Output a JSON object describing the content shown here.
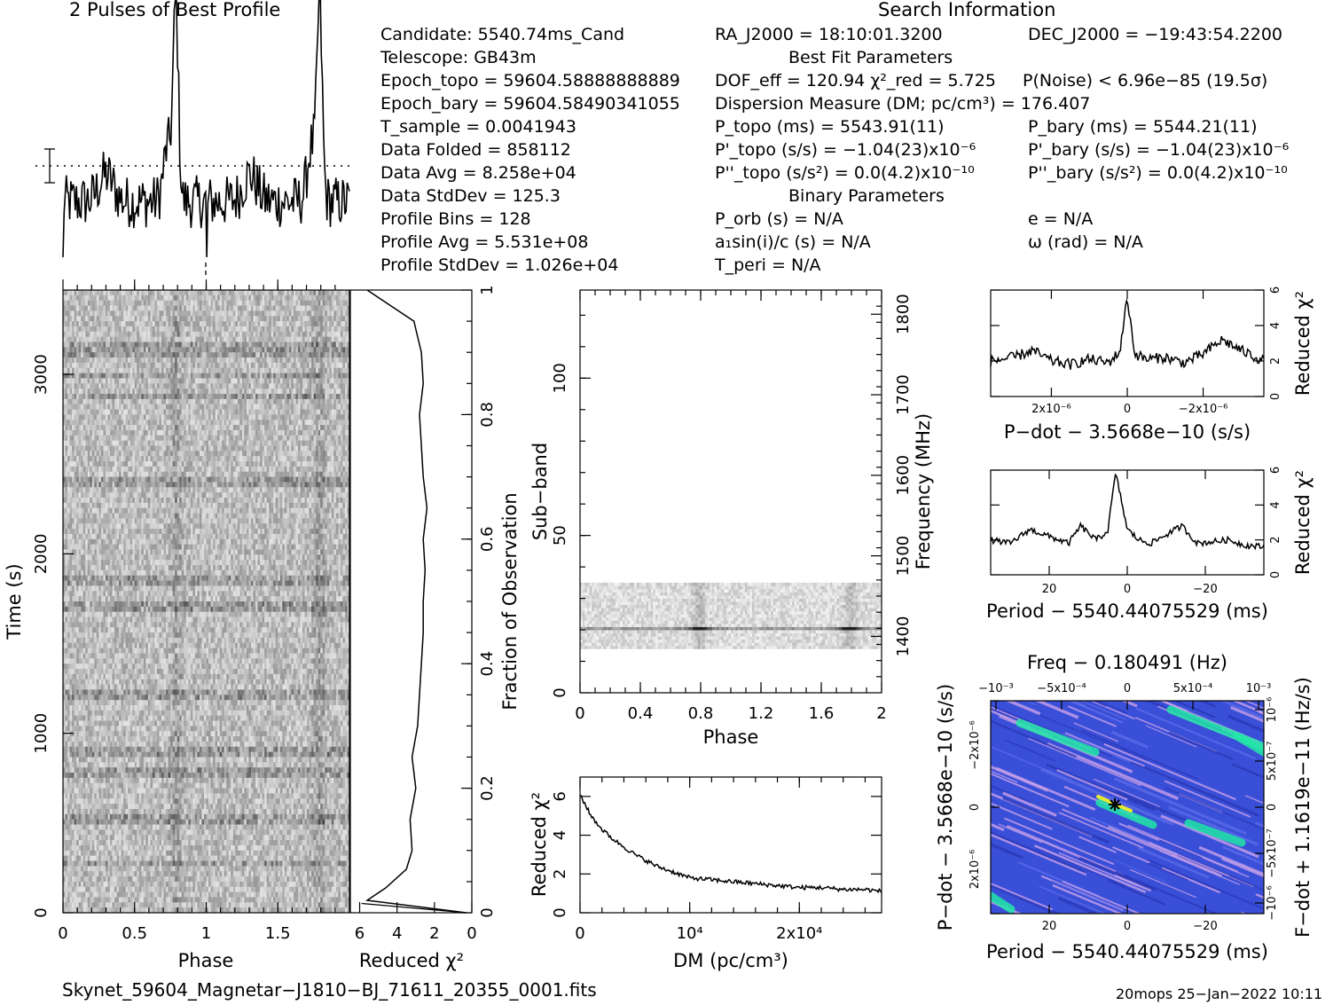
{
  "profile_title": "2 Pulses of Best Profile",
  "search_title": "Search Information",
  "info_left": [
    "Candidate:  5540.74ms_Cand",
    "Telescope:  GB43m",
    "Epoch_topo = 59604.58888888889",
    "Epoch_bary = 59604.58490341055",
    "T_sample      =  0.0041943",
    "Data Folded    =  858112",
    "Data Avg        =  8.258e+04",
    "Data StdDev   =  125.3",
    "Profile Bins    =  128",
    "Profile Avg      =  5.531e+08",
    "Profile StdDev =  1.026e+04"
  ],
  "info_mid": [
    "RA_J2000 = 18:10:01.3200",
    "Best Fit Parameters",
    "DOF_eff = 120.94  χ²_red = 5.725",
    "Dispersion Measure (DM; pc/cm³) = 176.407",
    "P_topo (ms) =  5543.91(11)",
    "P'_topo (s/s) = −1.04(23)x10⁻⁶",
    "P''_topo (s/s²) = 0.0(4.2)x10⁻¹⁰",
    "Binary Parameters",
    "P_orb (s) = N/A",
    "a₁sin(i)/c (s) = N/A",
    "T_peri = N/A"
  ],
  "info_right": [
    "DEC_J2000 = −19:43:54.2200",
    "P(Noise) < 6.96e−85  (19.5σ)",
    "P_bary (ms) =  5544.21(11)",
    "P'_bary (s/s) = −1.04(23)x10⁻⁶",
    "P''_bary (s/s²) = 0.0(4.2)x10⁻¹⁰",
    "e = N/A",
    "ω (rad) = N/A"
  ],
  "footer_file": "Skynet_59604_Magnetar−J1810−BJ_71611_20355_0001.fits",
  "footer_stamp": "20mops 25−Jan−2022 10:11",
  "chart_data": [
    {
      "id": "time_phase",
      "type": "heatmap",
      "xlabel": "Phase",
      "ylabel": "Time (s)",
      "xlim": [
        0,
        2
      ],
      "ylim": [
        0,
        3470
      ],
      "xticks": [
        "0",
        "0.5",
        "1",
        "1.5"
      ],
      "yticks": [
        "0",
        "1000",
        "2000",
        "3000"
      ],
      "colormap": "grayscale"
    },
    {
      "id": "time_chi2",
      "type": "line",
      "xlabel": "Reduced χ²",
      "ylabel": "Fraction of Observation",
      "xlim": [
        6.5,
        0
      ],
      "ylim": [
        0,
        1
      ],
      "xticks": [
        "6",
        "4",
        "2",
        "0"
      ],
      "yticks": [
        "0",
        "0.2",
        "0.4",
        "0.6",
        "0.8",
        "1"
      ],
      "y": [
        0,
        0.02,
        0.04,
        0.07,
        0.1,
        0.15,
        0.2,
        0.25,
        0.3,
        0.35,
        0.4,
        0.45,
        0.5,
        0.55,
        0.6,
        0.65,
        0.7,
        0.75,
        0.8,
        0.85,
        0.9,
        0.95,
        1.0
      ],
      "x": [
        0.3,
        5.6,
        4.6,
        3.5,
        3.2,
        3.3,
        3.0,
        3.2,
        2.9,
        2.8,
        2.7,
        2.6,
        2.6,
        2.5,
        2.6,
        2.4,
        2.6,
        2.7,
        2.8,
        2.6,
        2.7,
        3.1,
        5.6
      ]
    },
    {
      "id": "subband_phase",
      "type": "heatmap",
      "xlabel": "Phase",
      "ylabel": "Sub−band",
      "y2label": "Frequency (MHz)",
      "xlim": [
        0,
        2
      ],
      "ylim": [
        0,
        128
      ],
      "y2lim": [
        1330,
        1830
      ],
      "xticks": [
        "0",
        "0.4",
        "0.8",
        "1.2",
        "1.6",
        "2"
      ],
      "yticks": [
        "0",
        "50",
        "100"
      ],
      "y2ticks": [
        "1400",
        "1500",
        "1600",
        "1700",
        "1800"
      ],
      "band": [
        14,
        35
      ],
      "colormap": "grayscale"
    },
    {
      "id": "dm_chi2",
      "type": "line",
      "xlabel": "DM (pc/cm³)",
      "ylabel": "Reduced χ²",
      "xlim": [
        0,
        27500
      ],
      "ylim": [
        0,
        7
      ],
      "xticks": [
        "0",
        "10⁴",
        "2x10⁴"
      ],
      "yticks": [
        "0",
        "2",
        "4",
        "6"
      ],
      "x": [
        0,
        1000,
        2000,
        3000,
        4000,
        5000,
        6000,
        7000,
        8000,
        9000,
        10000,
        12000,
        14000,
        16000,
        18000,
        20000,
        22000,
        24000,
        26000,
        27500
      ],
      "y": [
        6.1,
        5.0,
        4.3,
        3.8,
        3.4,
        3.0,
        2.7,
        2.4,
        2.2,
        2.0,
        1.8,
        1.7,
        1.6,
        1.5,
        1.4,
        1.3,
        1.3,
        1.2,
        1.2,
        1.1
      ]
    },
    {
      "id": "pdot_chi2",
      "type": "line",
      "xlabel": "P−dot − 3.5668e−10 (s/s)",
      "ylabel": "Reduced χ²",
      "xlim": [
        3.6e-06,
        -3.6e-06
      ],
      "ylim": [
        0,
        6
      ],
      "xticks": [
        "2x10⁻⁶",
        "0",
        "−2x10⁻⁶"
      ],
      "yticks": [
        "0",
        "2",
        "4",
        "6"
      ],
      "x": [
        3.6e-06,
        3e-06,
        2.5e-06,
        2e-06,
        1.5e-06,
        1e-06,
        5e-07,
        2e-07,
        0,
        -2e-07,
        -5e-07,
        -1e-06,
        -1.5e-06,
        -2e-06,
        -2.5e-06,
        -3e-06,
        -3.6e-06
      ],
      "y": [
        2.0,
        2.2,
        2.6,
        2.0,
        1.8,
        2.1,
        1.9,
        2.5,
        5.6,
        2.4,
        2.1,
        2.2,
        1.9,
        2.4,
        3.2,
        2.6,
        2.0
      ]
    },
    {
      "id": "period_chi2",
      "type": "line",
      "xlabel": "Period − 5540.44075529 (ms)",
      "ylabel": "Reduced χ²",
      "xlim": [
        35,
        -35
      ],
      "ylim": [
        0,
        6
      ],
      "xticks": [
        "20",
        "0",
        "−20"
      ],
      "yticks": [
        "0",
        "2",
        "4",
        "6"
      ],
      "x": [
        35,
        30,
        25,
        20,
        15,
        12,
        8,
        5,
        3,
        2,
        0,
        -3,
        -6,
        -10,
        -14,
        -18,
        -22,
        -26,
        -30,
        -35
      ],
      "y": [
        2.0,
        1.8,
        2.6,
        2.2,
        1.8,
        2.8,
        2.0,
        2.5,
        5.8,
        4.8,
        2.6,
        2.0,
        1.8,
        2.3,
        2.8,
        1.8,
        1.9,
        2.0,
        1.7,
        1.6
      ]
    },
    {
      "id": "p_pdot_plane",
      "type": "heatmap",
      "title": "Freq − 0.180491 (Hz)",
      "xlabel": "Period − 5540.44075529 (ms)",
      "ylabel": "P−dot − 3.5668e−10 (s/s)",
      "y2label": "F−dot + 1.1619e−11 (Hz/s)",
      "xticks": [
        "20",
        "0",
        "−20"
      ],
      "x2ticks": [
        "−10⁻³",
        "−5x10⁻⁴",
        "0",
        "5x10⁻⁴",
        "10⁻³"
      ],
      "yticks": [
        "−2x10⁻⁶",
        "0",
        "2x10⁻⁶"
      ],
      "y2ticks": [
        "10⁻⁶",
        "5x10⁻⁷",
        "0",
        "−5x10⁻⁷",
        "−10⁻⁶"
      ],
      "colors": {
        "low": "#3a4fd8",
        "mid": "#c8a0e8",
        "high": "#22e6a8",
        "peak": "#e8e830"
      }
    }
  ]
}
